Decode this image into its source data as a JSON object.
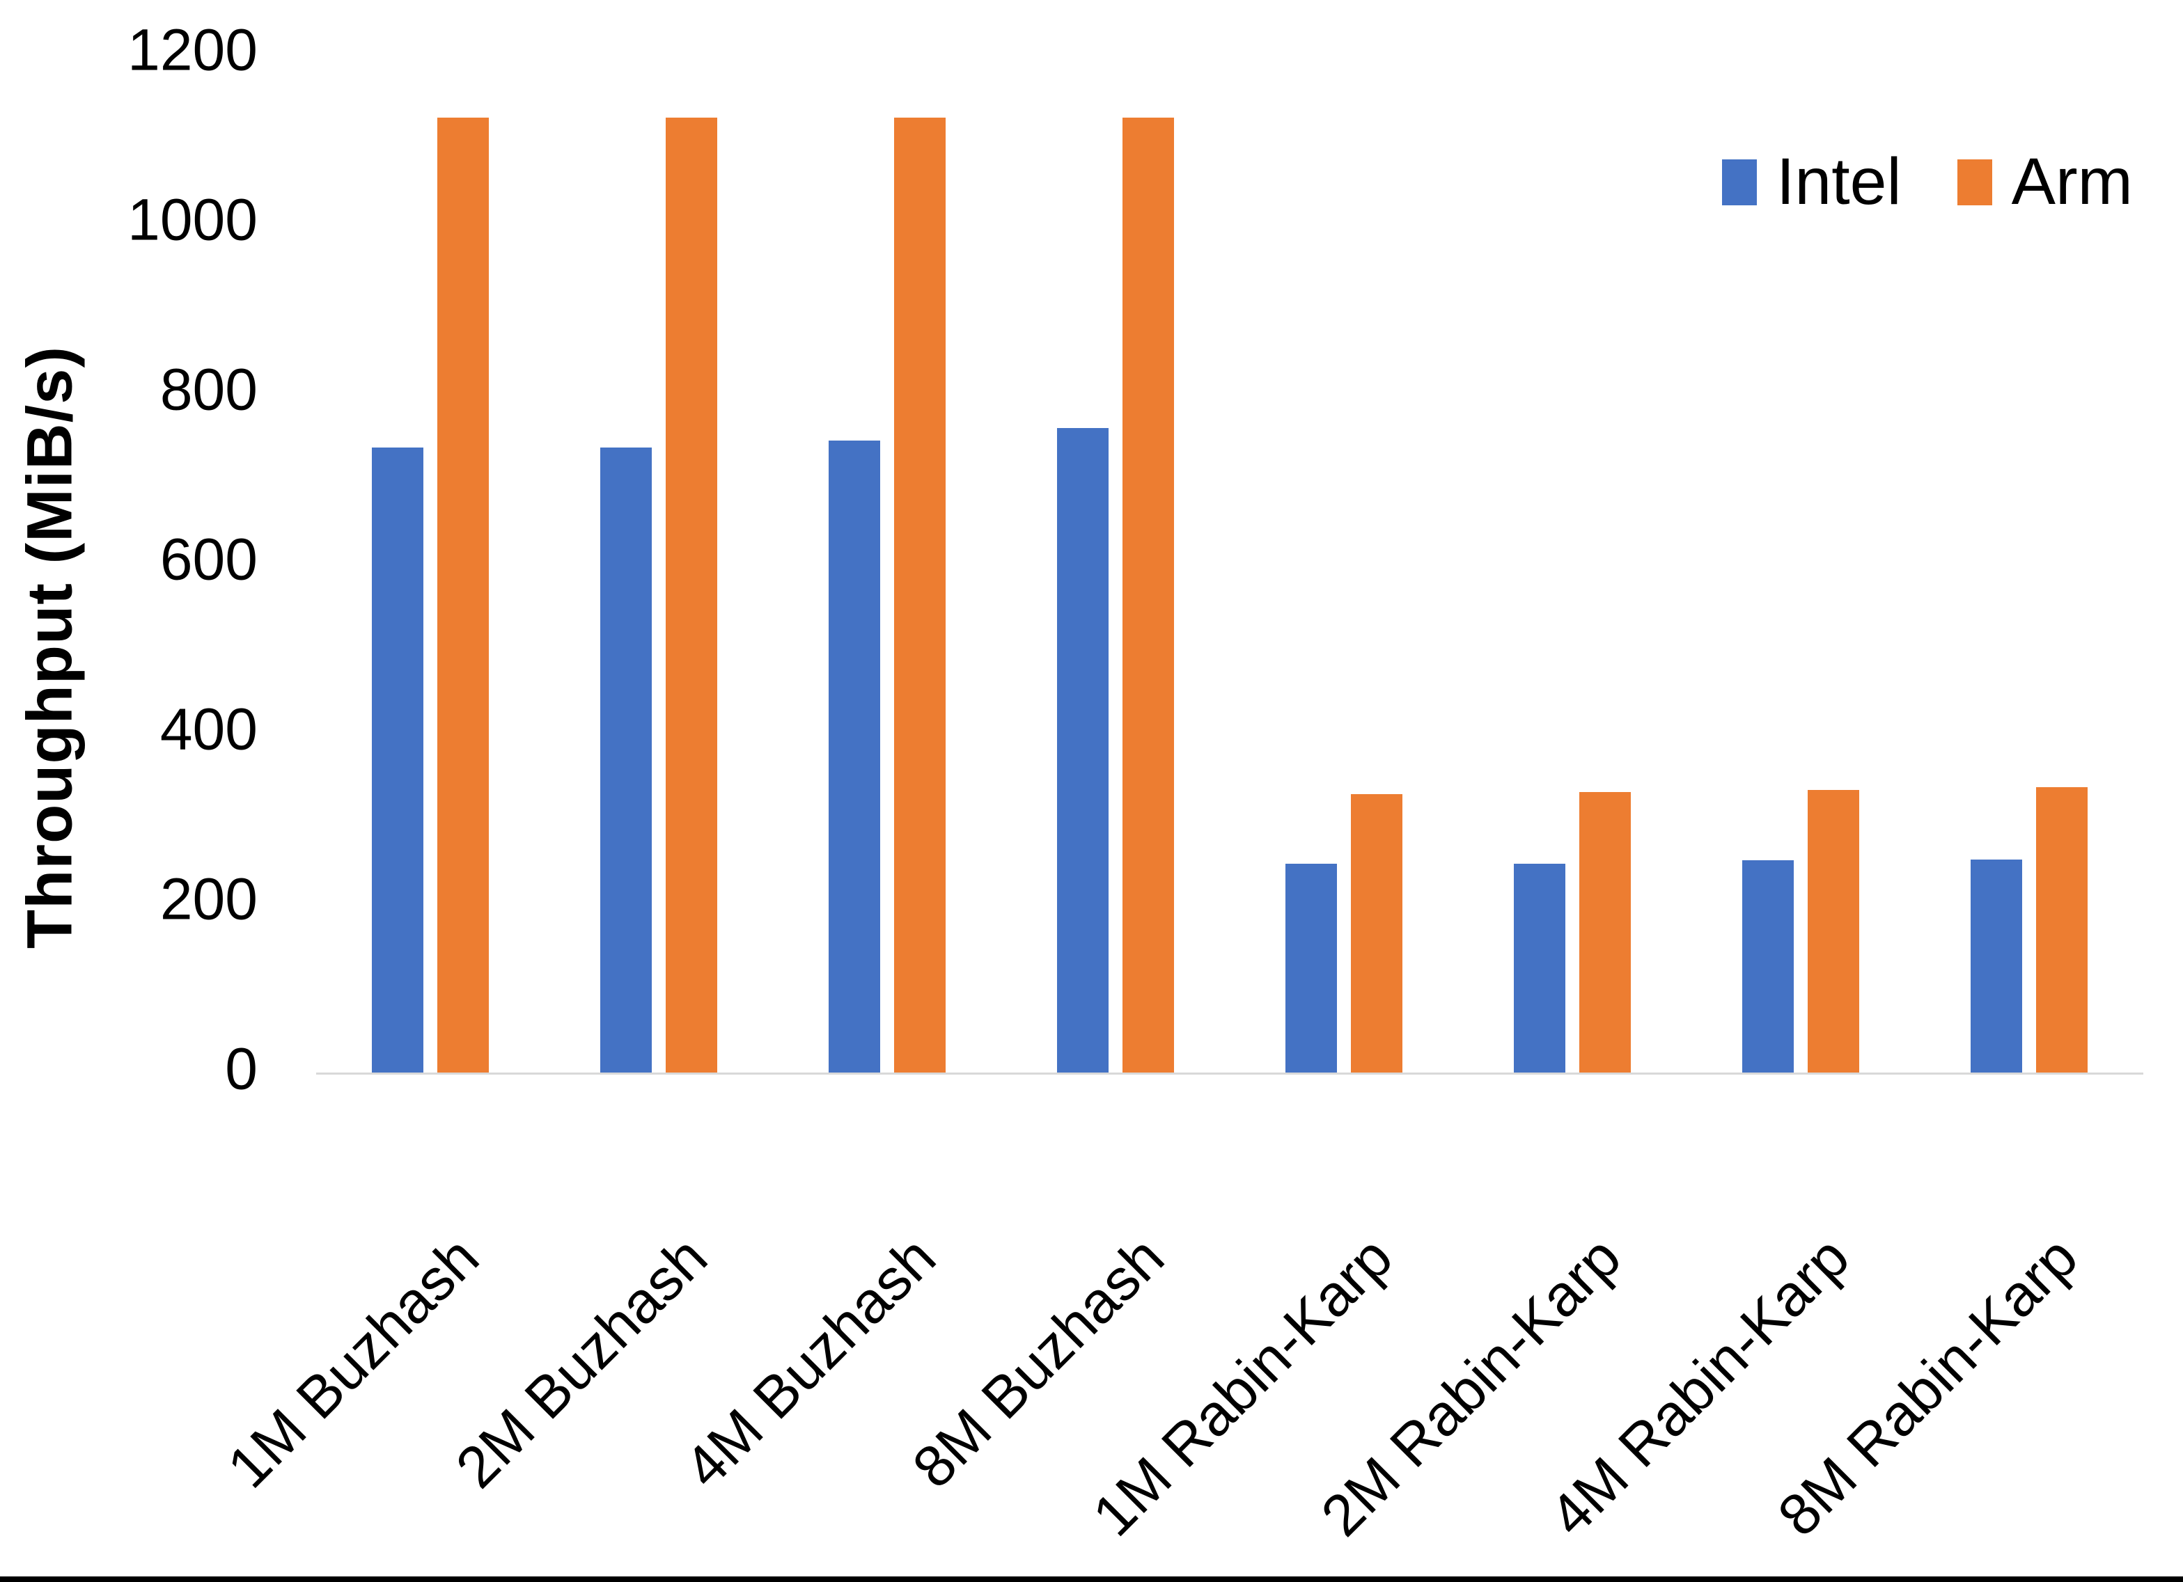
{
  "chart_data": {
    "type": "bar",
    "title": "",
    "categories": [
      "1M Buzhash",
      "2M Buzhash",
      "4M Buzhash",
      "8M Buzhash",
      "1M Rabin-Karp",
      "2M Rabin-Karp",
      "4M Rabin-Karp",
      "8M Rabin-Karp"
    ],
    "series": [
      {
        "name": "Intel",
        "color": "#4472C4",
        "values": [
          737,
          737,
          745,
          760,
          247,
          247,
          251,
          252
        ]
      },
      {
        "name": "Arm",
        "color": "#ED7D31",
        "values": [
          1125,
          1125,
          1125,
          1125,
          329,
          331,
          334,
          337
        ]
      }
    ],
    "xlabel": "",
    "ylabel": "Throughput (MiB/s)",
    "ylim": [
      0,
      1200
    ],
    "yticks": [
      0,
      200,
      400,
      600,
      800,
      1000,
      1200
    ],
    "grid": false,
    "legend_position": "top-right",
    "axis_line_color": "#d9d9d9",
    "text_color": "#000000"
  }
}
